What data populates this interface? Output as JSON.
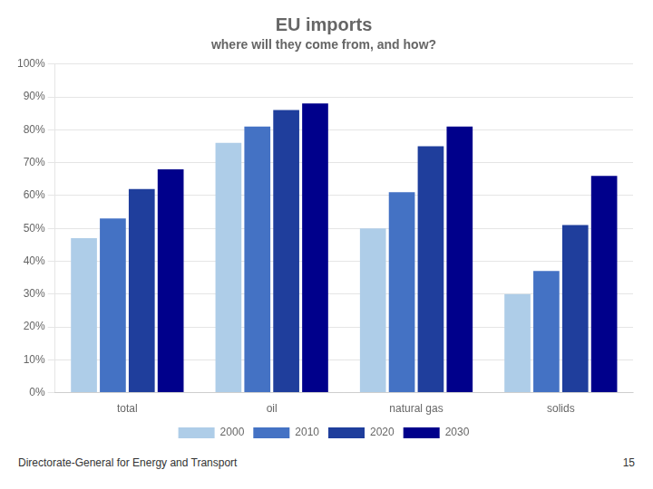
{
  "chart_data": {
    "type": "bar",
    "title": "EU imports",
    "subtitle": "where will they come from, and how?",
    "categories": [
      "total",
      "oil",
      "natural gas",
      "solids"
    ],
    "series": [
      {
        "name": "2000",
        "color": "#AECDE8",
        "values": [
          47,
          76,
          50,
          30
        ]
      },
      {
        "name": "2010",
        "color": "#4472C4",
        "values": [
          53,
          81,
          61,
          37
        ]
      },
      {
        "name": "2020",
        "color": "#1F3E9C",
        "values": [
          62,
          86,
          75,
          51
        ]
      },
      {
        "name": "2030",
        "color": "#00008B",
        "values": [
          68,
          88,
          81,
          66
        ]
      }
    ],
    "ylim": [
      0,
      100
    ],
    "yticks": [
      {
        "value": 0,
        "label": "0%"
      },
      {
        "value": 10,
        "label": "10%"
      },
      {
        "value": 20,
        "label": "20%"
      },
      {
        "value": 30,
        "label": "30%"
      },
      {
        "value": 40,
        "label": "40%"
      },
      {
        "value": 50,
        "label": "50%"
      },
      {
        "value": 60,
        "label": "60%"
      },
      {
        "value": 70,
        "label": "70%"
      },
      {
        "value": 80,
        "label": "80%"
      },
      {
        "value": 90,
        "label": "90%"
      },
      {
        "value": 100,
        "label": "100%"
      }
    ],
    "grid": true,
    "legend": "bottom",
    "annotations": [
      "Directorate-General for Energy and Transport",
      "15"
    ]
  }
}
